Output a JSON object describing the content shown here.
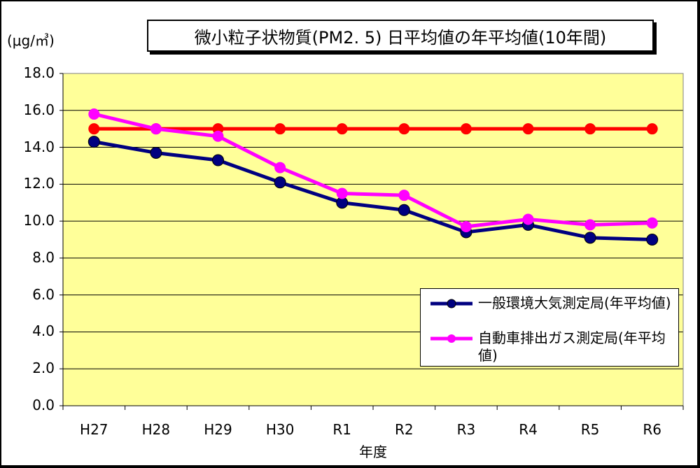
{
  "chart_data": {
    "type": "line",
    "title": "微小粒子状物質(PM2. 5) 日平均値の年平均値(10年間)",
    "unit": "(μg/㎥)",
    "xlabel": "年度",
    "categories": [
      "H27",
      "H28",
      "H29",
      "H30",
      "R1",
      "R2",
      "R3",
      "R4",
      "R5",
      "R6"
    ],
    "ylim": [
      0,
      18
    ],
    "yticks": [
      "0.0",
      "2.0",
      "4.0",
      "6.0",
      "8.0",
      "10.0",
      "12.0",
      "14.0",
      "16.0",
      "18.0"
    ],
    "grid": true,
    "legend_position": "bottom-right",
    "series": [
      {
        "name": "一般環境大気測定局(年平均値)",
        "color": "#000080",
        "values": [
          14.3,
          13.7,
          13.3,
          12.1,
          11.0,
          10.6,
          9.4,
          9.8,
          9.1,
          9.0
        ]
      },
      {
        "name": "自動車排出ガス測定局(年平均値)",
        "color": "#ff00ff",
        "values": [
          15.8,
          15.0,
          14.6,
          12.9,
          11.5,
          11.4,
          9.7,
          10.1,
          9.8,
          9.9
        ]
      },
      {
        "color": "#ff0000",
        "values": [
          15,
          15,
          15,
          15,
          15,
          15,
          15,
          15,
          15,
          15
        ]
      }
    ],
    "plot_background": "#ffff99"
  }
}
